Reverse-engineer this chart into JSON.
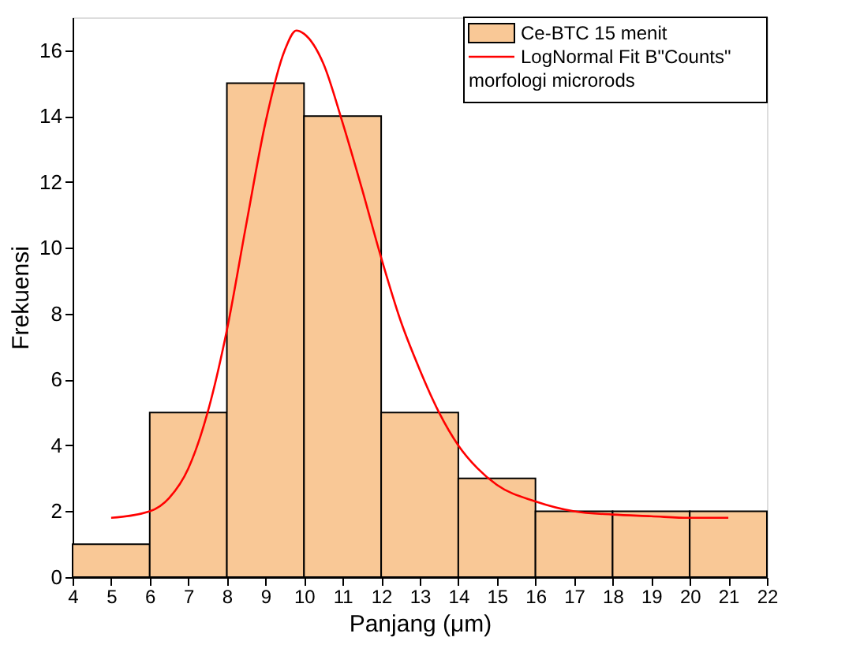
{
  "chart_data": {
    "type": "histogram",
    "xlabel": "Panjang (μm)",
    "ylabel": "Frekuensi",
    "bins": [
      4,
      6,
      8,
      10,
      12,
      14,
      16,
      18,
      20,
      22
    ],
    "series": [
      {
        "name": "Ce-BTC 15 menit",
        "color": "#f9c896",
        "values": [
          1,
          5,
          15,
          14,
          5,
          3,
          2,
          2,
          2
        ]
      },
      {
        "name": "LogNormal Fit B\"Counts\"",
        "type": "line",
        "color": "#ff0000",
        "x": [
          5,
          6,
          6.5,
          7,
          7.5,
          8,
          8.5,
          9,
          9.5,
          9.8,
          10,
          10.5,
          11,
          11.5,
          12,
          12.5,
          13,
          13.5,
          14,
          14.5,
          15,
          16,
          17,
          18,
          19,
          20,
          21
        ],
        "values": [
          1.8,
          2.0,
          2.4,
          3.3,
          5.0,
          7.5,
          10.7,
          13.8,
          16.0,
          16.6,
          16.5,
          15.6,
          13.8,
          11.8,
          9.7,
          7.8,
          6.3,
          5.0,
          4.0,
          3.3,
          2.8,
          2.3,
          2.0,
          1.9,
          1.85,
          1.8,
          1.8
        ]
      }
    ],
    "legend_title": "morfologi microrods",
    "xlim": [
      4,
      22
    ],
    "xticks": [
      4,
      5,
      6,
      7,
      8,
      9,
      10,
      11,
      12,
      13,
      14,
      15,
      16,
      17,
      18,
      19,
      20,
      21,
      22
    ],
    "ylim": [
      0,
      17
    ],
    "yticks": [
      0,
      2,
      4,
      6,
      8,
      10,
      12,
      14,
      16
    ],
    "grid": false,
    "legend": "top right"
  }
}
